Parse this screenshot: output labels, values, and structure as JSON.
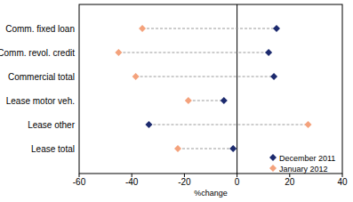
{
  "chart_data": {
    "type": "dot",
    "orientation": "horizontal",
    "x_label": "%change",
    "categories": [
      "Comm. fixed loan",
      "Comm. revol. credit",
      "Commercial total",
      "Lease motor veh.",
      "Lease other",
      "Lease total"
    ],
    "series": [
      {
        "name": "December 2011",
        "color": "#1c2a6e",
        "marker": "diamond",
        "values": [
          15,
          12,
          14,
          -5,
          -33.5,
          -1.5
        ]
      },
      {
        "name": "January 2012",
        "color": "#f4a27c",
        "marker": "diamond",
        "values": [
          -36,
          -45,
          -38.5,
          -18.5,
          27,
          -22.5
        ]
      }
    ],
    "xlim": [
      -60,
      40
    ],
    "xticks": [
      -60,
      -40,
      -20,
      0,
      20,
      40
    ],
    "legend": "lower right",
    "grid": false
  }
}
